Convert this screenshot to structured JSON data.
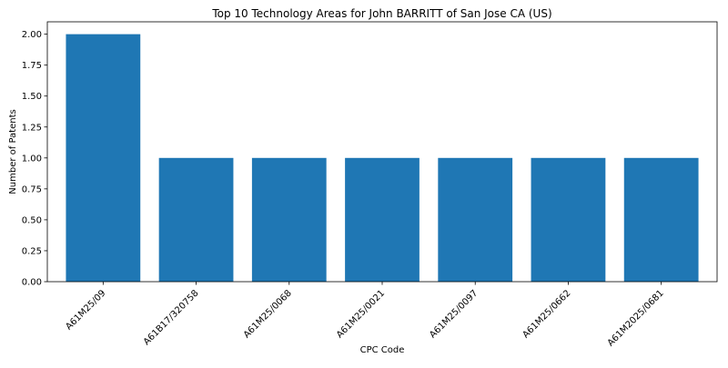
{
  "chart_data": {
    "type": "bar",
    "title": "Top 10 Technology Areas for John BARRITT of San Jose CA (US)",
    "xlabel": "CPC Code",
    "ylabel": "Number of Patents",
    "categories": [
      "A61M25/09",
      "A61B17/320758",
      "A61M25/0068",
      "A61M25/0021",
      "A61M25/0097",
      "A61M25/0662",
      "A61M2025/0681"
    ],
    "values": [
      2,
      1,
      1,
      1,
      1,
      1,
      1
    ],
    "ylim": [
      0,
      2.1
    ],
    "yticks": [
      "0.00",
      "0.25",
      "0.50",
      "0.75",
      "1.00",
      "1.25",
      "1.50",
      "1.75",
      "2.00"
    ],
    "grid": false,
    "bar_color": "#1f77b4"
  }
}
